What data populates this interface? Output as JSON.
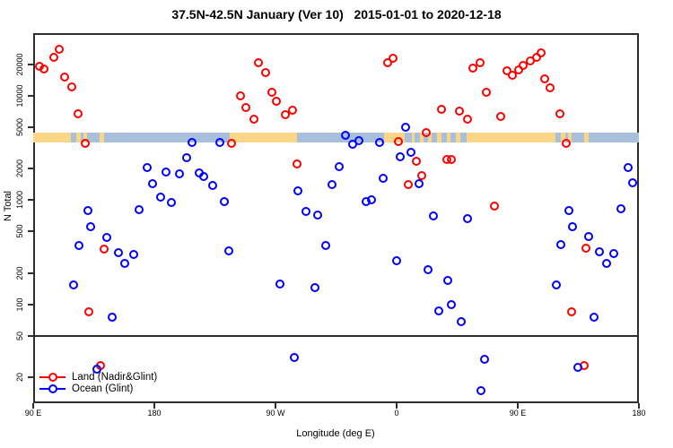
{
  "chart_data": {
    "type": "scatter",
    "title": "37.5N-42.5N January (Ver 10)   2015-01-01 to 2020-12-18",
    "xlabel": "Longitude (deg E)",
    "ylabel": "N Total",
    "x_axis": {
      "note": "longitude unwrapped eastward from 90E; spans 450 degrees",
      "range": [
        90,
        540
      ],
      "ticks": [
        {
          "value": 90,
          "label": "90 E"
        },
        {
          "value": 180,
          "label": "180"
        },
        {
          "value": 270,
          "label": "90 W"
        },
        {
          "value": 360,
          "label": "0"
        },
        {
          "value": 450,
          "label": "90 E"
        },
        {
          "value": 540,
          "label": "180"
        }
      ]
    },
    "y_axis": {
      "scale": "log",
      "range": [
        11,
        40000
      ],
      "ticks": [
        {
          "value": 20000,
          "label": "20000"
        },
        {
          "value": 10000,
          "label": "10000"
        },
        {
          "value": 5000,
          "label": "5000"
        },
        {
          "value": 2000,
          "label": "2000"
        },
        {
          "value": 1000,
          "label": "1000"
        },
        {
          "value": 500,
          "label": "500"
        },
        {
          "value": 200,
          "label": "200"
        },
        {
          "value": 100,
          "label": "100"
        },
        {
          "value": 50,
          "label": "50"
        },
        {
          "value": 20,
          "label": "20"
        }
      ]
    },
    "reference_line_value": 50,
    "land_ocean_strip": {
      "value_top": 4450,
      "value_bottom": 3560,
      "land_color": "#FBD687",
      "ocean_color": "#A9C0DC",
      "segments": [
        {
          "from": 90,
          "to": 118,
          "surface": "land"
        },
        {
          "from": 118,
          "to": 122,
          "surface": "ocean"
        },
        {
          "from": 122,
          "to": 125,
          "surface": "land"
        },
        {
          "from": 125,
          "to": 127.5,
          "surface": "ocean"
        },
        {
          "from": 127.5,
          "to": 130,
          "surface": "land"
        },
        {
          "from": 130,
          "to": 139,
          "surface": "ocean"
        },
        {
          "from": 139,
          "to": 142.5,
          "surface": "land"
        },
        {
          "from": 142.5,
          "to": 236,
          "surface": "ocean"
        },
        {
          "from": 236,
          "to": 286,
          "surface": "land"
        },
        {
          "from": 286,
          "to": 350.5,
          "surface": "ocean"
        },
        {
          "from": 350.5,
          "to": 366,
          "surface": "land"
        },
        {
          "from": 366,
          "to": 371,
          "surface": "ocean"
        },
        {
          "from": 371,
          "to": 373.5,
          "surface": "land"
        },
        {
          "from": 373.5,
          "to": 377,
          "surface": "ocean"
        },
        {
          "from": 377,
          "to": 380,
          "surface": "land"
        },
        {
          "from": 380,
          "to": 383,
          "surface": "ocean"
        },
        {
          "from": 383,
          "to": 386,
          "surface": "land"
        },
        {
          "from": 386,
          "to": 390,
          "surface": "ocean"
        },
        {
          "from": 390,
          "to": 393,
          "surface": "land"
        },
        {
          "from": 393,
          "to": 397,
          "surface": "ocean"
        },
        {
          "from": 397,
          "to": 400,
          "surface": "land"
        },
        {
          "from": 400,
          "to": 404,
          "surface": "ocean"
        },
        {
          "from": 404,
          "to": 407,
          "surface": "land"
        },
        {
          "from": 407,
          "to": 412,
          "surface": "ocean"
        },
        {
          "from": 412,
          "to": 478,
          "surface": "land"
        },
        {
          "from": 478,
          "to": 482,
          "surface": "ocean"
        },
        {
          "from": 482,
          "to": 485,
          "surface": "land"
        },
        {
          "from": 485,
          "to": 487.5,
          "surface": "ocean"
        },
        {
          "from": 487.5,
          "to": 490,
          "surface": "land"
        },
        {
          "from": 490,
          "to": 499,
          "surface": "ocean"
        },
        {
          "from": 499,
          "to": 502.5,
          "surface": "land"
        },
        {
          "from": 502.5,
          "to": 540,
          "surface": "ocean"
        }
      ]
    },
    "series": [
      {
        "name": "Land (Nadir&Glint)",
        "color": "#FF0000",
        "points": [
          [
            109,
            28000
          ],
          [
            105.3,
            23600
          ],
          [
            94.7,
            19400
          ],
          [
            98.2,
            18300
          ],
          [
            113.5,
            15200
          ],
          [
            118.7,
            12200
          ],
          [
            123.5,
            6700
          ],
          [
            128.9,
            3530
          ],
          [
            131.3,
            85
          ],
          [
            140.2,
            26
          ],
          [
            142.7,
            340
          ],
          [
            237.3,
            3540
          ],
          [
            243.8,
            10000
          ],
          [
            248.2,
            7800
          ],
          [
            254,
            6000
          ],
          [
            257.5,
            21000
          ],
          [
            262.5,
            16900
          ],
          [
            267.1,
            10800
          ],
          [
            270.9,
            8900
          ],
          [
            277.5,
            6600
          ],
          [
            282.5,
            7300
          ],
          [
            286,
            2220
          ],
          [
            353.1,
            21000
          ],
          [
            357.1,
            23200
          ],
          [
            361.5,
            3650
          ],
          [
            368.7,
            1400
          ],
          [
            374.9,
            2380
          ],
          [
            378.7,
            1710
          ],
          [
            382,
            4450
          ],
          [
            393.3,
            7400
          ],
          [
            397.1,
            2460
          ],
          [
            400.9,
            2460
          ],
          [
            406.9,
            7200
          ],
          [
            412.7,
            6000
          ],
          [
            416.5,
            18600
          ],
          [
            422,
            21000
          ],
          [
            426.5,
            10800
          ],
          [
            432.7,
            880
          ],
          [
            437.1,
            6400
          ],
          [
            442,
            17500
          ],
          [
            445.8,
            15700
          ],
          [
            450.9,
            17900
          ],
          [
            454.2,
            19500
          ],
          [
            459.1,
            21600
          ],
          [
            463.8,
            23300
          ],
          [
            467.5,
            26000
          ],
          [
            470.2,
            14500
          ],
          [
            474.2,
            12000
          ],
          [
            481.5,
            6700
          ],
          [
            486,
            3530
          ],
          [
            489.8,
            85
          ],
          [
            499.1,
            26
          ],
          [
            500.9,
            344
          ]
        ]
      },
      {
        "name": "Ocean (Glint)",
        "color": "#0000FF",
        "points": [
          [
            120.2,
            153
          ],
          [
            124.2,
            370
          ],
          [
            130.5,
            795
          ],
          [
            132.9,
            553
          ],
          [
            137.1,
            24
          ],
          [
            144.5,
            437
          ],
          [
            148.7,
            75
          ],
          [
            153.5,
            315
          ],
          [
            158,
            246
          ],
          [
            164.7,
            299
          ],
          [
            168.7,
            810
          ],
          [
            174.5,
            2040
          ],
          [
            178.7,
            1440
          ],
          [
            184.9,
            1060
          ],
          [
            188.5,
            1860
          ],
          [
            192.7,
            944
          ],
          [
            198.5,
            1800
          ],
          [
            203.8,
            2570
          ],
          [
            208.2,
            3550
          ],
          [
            213.5,
            1815
          ],
          [
            216.5,
            1690
          ],
          [
            223.1,
            1385
          ],
          [
            228.5,
            3550
          ],
          [
            232,
            975
          ],
          [
            235.3,
            324
          ],
          [
            273.5,
            158
          ],
          [
            284.2,
            31
          ],
          [
            286.9,
            1230
          ],
          [
            292.7,
            774
          ],
          [
            299.3,
            146
          ],
          [
            301.3,
            724
          ],
          [
            307.5,
            367
          ],
          [
            312,
            1400
          ],
          [
            317.5,
            2085
          ],
          [
            322,
            4170
          ],
          [
            327.5,
            3470
          ],
          [
            332,
            3710
          ],
          [
            337.5,
            975
          ],
          [
            341.5,
            1010
          ],
          [
            347.1,
            3590
          ],
          [
            350,
            1630
          ],
          [
            359.8,
            260
          ],
          [
            362.7,
            2620
          ],
          [
            366.5,
            4980
          ],
          [
            370.9,
            2900
          ],
          [
            376.4,
            1430
          ],
          [
            383.1,
            216
          ],
          [
            387.5,
            700
          ],
          [
            391,
            86
          ],
          [
            398.2,
            169
          ],
          [
            400.9,
            99
          ],
          [
            408.2,
            68
          ],
          [
            412.7,
            668
          ],
          [
            422.5,
            15
          ],
          [
            425.3,
            30
          ],
          [
            478.5,
            153
          ],
          [
            482,
            372
          ],
          [
            488.2,
            800
          ],
          [
            490.9,
            560
          ],
          [
            494.9,
            25
          ],
          [
            502.7,
            445
          ],
          [
            506.5,
            76
          ],
          [
            510.9,
            320
          ],
          [
            516,
            249
          ],
          [
            521.5,
            305
          ],
          [
            526.5,
            826
          ],
          [
            532,
            2055
          ],
          [
            535.3,
            1480
          ]
        ]
      }
    ],
    "legend": {
      "position": "bottom-left",
      "entries": [
        "Land (Nadir&Glint)",
        "Ocean (Glint)"
      ]
    }
  }
}
